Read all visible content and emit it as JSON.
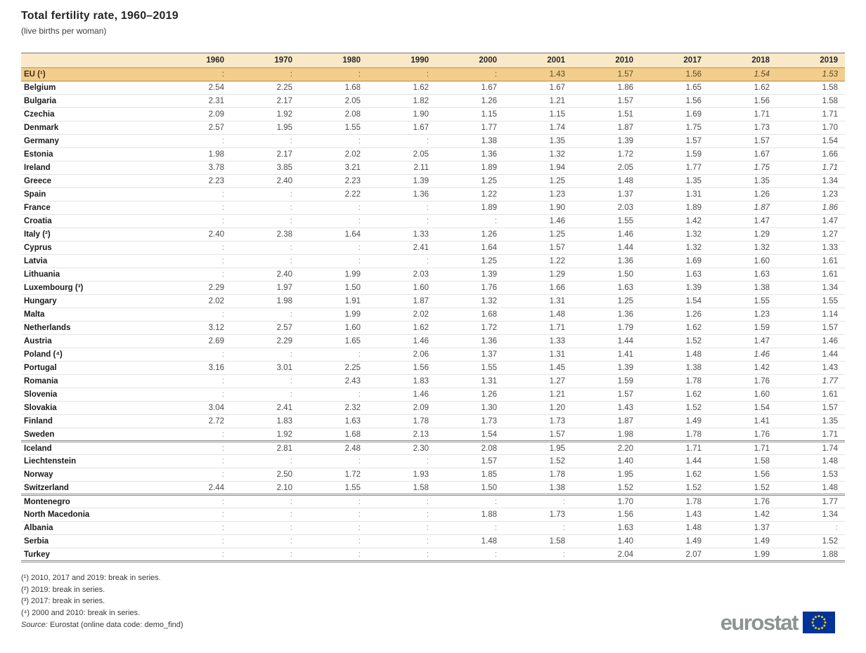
{
  "chart_data": {
    "type": "table",
    "title": "Total fertility rate, 1960–2019",
    "subtitle": "(live births per woman)",
    "unit": "live births per woman",
    "missing_symbol": ":",
    "columns": [
      "1960",
      "1970",
      "1980",
      "1990",
      "2000",
      "2001",
      "2010",
      "2017",
      "2018",
      "2019"
    ],
    "rows": [
      {
        "label": "EU (¹)",
        "highlight": true,
        "values": [
          ":",
          ":",
          ":",
          ":",
          ":",
          "1.43",
          "1.57",
          "1.56",
          "1.54",
          "1.53"
        ],
        "italic": [
          8,
          9
        ]
      },
      {
        "label": "Belgium",
        "values": [
          "2.54",
          "2.25",
          "1.68",
          "1.62",
          "1.67",
          "1.67",
          "1.86",
          "1.65",
          "1.62",
          "1.58"
        ]
      },
      {
        "label": "Bulgaria",
        "values": [
          "2.31",
          "2.17",
          "2.05",
          "1.82",
          "1.26",
          "1.21",
          "1.57",
          "1.56",
          "1.56",
          "1.58"
        ]
      },
      {
        "label": "Czechia",
        "values": [
          "2.09",
          "1.92",
          "2.08",
          "1.90",
          "1.15",
          "1.15",
          "1.51",
          "1.69",
          "1.71",
          "1.71"
        ]
      },
      {
        "label": "Denmark",
        "values": [
          "2.57",
          "1.95",
          "1.55",
          "1.67",
          "1.77",
          "1.74",
          "1.87",
          "1.75",
          "1.73",
          "1.70"
        ]
      },
      {
        "label": "Germany",
        "values": [
          ":",
          ":",
          ":",
          ":",
          "1.38",
          "1.35",
          "1.39",
          "1.57",
          "1.57",
          "1.54"
        ]
      },
      {
        "label": "Estonia",
        "values": [
          "1.98",
          "2.17",
          "2.02",
          "2.05",
          "1.36",
          "1.32",
          "1.72",
          "1.59",
          "1.67",
          "1.66"
        ]
      },
      {
        "label": "Ireland",
        "values": [
          "3.78",
          "3.85",
          "3.21",
          "2.11",
          "1.89",
          "1.94",
          "2.05",
          "1.77",
          "1.75",
          "1.71"
        ],
        "italic": [
          8,
          9
        ]
      },
      {
        "label": "Greece",
        "values": [
          "2.23",
          "2.40",
          "2.23",
          "1.39",
          "1.25",
          "1.25",
          "1.48",
          "1.35",
          "1.35",
          "1.34"
        ]
      },
      {
        "label": "Spain",
        "values": [
          ":",
          ":",
          "2.22",
          "1.36",
          "1.22",
          "1.23",
          "1.37",
          "1.31",
          "1.26",
          "1.23"
        ]
      },
      {
        "label": "France",
        "values": [
          ":",
          ":",
          ":",
          ":",
          "1.89",
          "1.90",
          "2.03",
          "1.89",
          "1.87",
          "1.86"
        ],
        "italic": [
          8,
          9
        ]
      },
      {
        "label": "Croatia",
        "values": [
          ":",
          ":",
          ":",
          ":",
          ":",
          "1.46",
          "1.55",
          "1.42",
          "1.47",
          "1.47"
        ]
      },
      {
        "label": "Italy (²)",
        "values": [
          "2.40",
          "2.38",
          "1.64",
          "1.33",
          "1.26",
          "1.25",
          "1.46",
          "1.32",
          "1.29",
          "1.27"
        ]
      },
      {
        "label": "Cyprus",
        "values": [
          ":",
          ":",
          ":",
          "2.41",
          "1.64",
          "1.57",
          "1.44",
          "1.32",
          "1.32",
          "1.33"
        ]
      },
      {
        "label": "Latvia",
        "values": [
          ":",
          ":",
          ":",
          ":",
          "1.25",
          "1.22",
          "1.36",
          "1.69",
          "1.60",
          "1.61"
        ]
      },
      {
        "label": "Lithuania",
        "values": [
          ":",
          "2.40",
          "1.99",
          "2.03",
          "1.39",
          "1.29",
          "1.50",
          "1.63",
          "1.63",
          "1.61"
        ]
      },
      {
        "label": "Luxembourg (³)",
        "values": [
          "2.29",
          "1.97",
          "1.50",
          "1.60",
          "1.76",
          "1.66",
          "1.63",
          "1.39",
          "1.38",
          "1.34"
        ]
      },
      {
        "label": "Hungary",
        "values": [
          "2.02",
          "1.98",
          "1.91",
          "1.87",
          "1.32",
          "1.31",
          "1.25",
          "1.54",
          "1.55",
          "1.55"
        ]
      },
      {
        "label": "Malta",
        "values": [
          ":",
          ":",
          "1.99",
          "2.02",
          "1.68",
          "1.48",
          "1.36",
          "1.26",
          "1.23",
          "1.14"
        ]
      },
      {
        "label": "Netherlands",
        "values": [
          "3.12",
          "2.57",
          "1.60",
          "1.62",
          "1.72",
          "1.71",
          "1.79",
          "1.62",
          "1.59",
          "1.57"
        ]
      },
      {
        "label": "Austria",
        "values": [
          "2.69",
          "2.29",
          "1.65",
          "1.46",
          "1.36",
          "1.33",
          "1.44",
          "1.52",
          "1.47",
          "1.46"
        ]
      },
      {
        "label": "Poland (⁴)",
        "values": [
          ":",
          ":",
          ":",
          "2.06",
          "1.37",
          "1.31",
          "1.41",
          "1.48",
          "1.46",
          "1.44"
        ],
        "italic": [
          8
        ]
      },
      {
        "label": "Portugal",
        "values": [
          "3.16",
          "3.01",
          "2.25",
          "1.56",
          "1.55",
          "1.45",
          "1.39",
          "1.38",
          "1.42",
          "1.43"
        ]
      },
      {
        "label": "Romania",
        "values": [
          ":",
          ":",
          "2.43",
          "1.83",
          "1.31",
          "1.27",
          "1.59",
          "1.78",
          "1.76",
          "1.77"
        ],
        "italic": [
          9
        ]
      },
      {
        "label": "Slovenia",
        "values": [
          ":",
          ":",
          ":",
          "1.46",
          "1.26",
          "1.21",
          "1.57",
          "1.62",
          "1.60",
          "1.61"
        ]
      },
      {
        "label": "Slovakia",
        "values": [
          "3.04",
          "2.41",
          "2.32",
          "2.09",
          "1.30",
          "1.20",
          "1.43",
          "1.52",
          "1.54",
          "1.57"
        ]
      },
      {
        "label": "Finland",
        "values": [
          "2.72",
          "1.83",
          "1.63",
          "1.78",
          "1.73",
          "1.73",
          "1.87",
          "1.49",
          "1.41",
          "1.35"
        ]
      },
      {
        "label": "Sweden",
        "values": [
          ":",
          "1.92",
          "1.68",
          "2.13",
          "1.54",
          "1.57",
          "1.98",
          "1.78",
          "1.76",
          "1.71"
        ],
        "group_end": true
      },
      {
        "label": "Iceland",
        "values": [
          ":",
          "2.81",
          "2.48",
          "2.30",
          "2.08",
          "1.95",
          "2.20",
          "1.71",
          "1.71",
          "1.74"
        ]
      },
      {
        "label": "Liechtenstein",
        "values": [
          ":",
          ":",
          ":",
          ":",
          "1.57",
          "1.52",
          "1.40",
          "1.44",
          "1.58",
          "1.48"
        ]
      },
      {
        "label": "Norway",
        "values": [
          ":",
          "2.50",
          "1.72",
          "1.93",
          "1.85",
          "1.78",
          "1.95",
          "1.62",
          "1.56",
          "1.53"
        ]
      },
      {
        "label": "Switzerland",
        "values": [
          "2.44",
          "2.10",
          "1.55",
          "1.58",
          "1.50",
          "1.38",
          "1.52",
          "1.52",
          "1.52",
          "1.48"
        ],
        "group_end": true
      },
      {
        "label": "Montenegro",
        "values": [
          ":",
          ":",
          ":",
          ":",
          ":",
          ":",
          "1.70",
          "1.78",
          "1.76",
          "1.77"
        ]
      },
      {
        "label": "North Macedonia",
        "values": [
          ":",
          ":",
          ":",
          ":",
          "1.88",
          "1.73",
          "1.56",
          "1.43",
          "1.42",
          "1.34"
        ]
      },
      {
        "label": "Albania",
        "values": [
          ":",
          ":",
          ":",
          ":",
          ":",
          ":",
          "1.63",
          "1.48",
          "1.37",
          ":"
        ]
      },
      {
        "label": "Serbia",
        "values": [
          ":",
          ":",
          ":",
          ":",
          "1.48",
          "1.58",
          "1.40",
          "1.49",
          "1.49",
          "1.52"
        ]
      },
      {
        "label": "Turkey",
        "values": [
          ":",
          ":",
          ":",
          ":",
          ":",
          ":",
          "2.04",
          "2.07",
          "1.99",
          "1.88"
        ],
        "group_end": true
      }
    ]
  },
  "footnotes": [
    "(¹) 2010, 2017 and 2019: break in series.",
    "(²) 2019: break in series.",
    "(³) 2017: break in series.",
    "(⁴) 2000 and 2010: break in series."
  ],
  "source_label": "Source:",
  "source_text": "Eurostat (online data code: demo_find)",
  "logo": {
    "text": "eurostat"
  },
  "colors": {
    "header_bg": "#F9E9C8",
    "eu_row_bg": "#F3CD8C",
    "header_rule": "#B59359",
    "logo_gray": "#8E9293",
    "flag_blue": "#003399",
    "star_yellow": "#FFCC00"
  }
}
